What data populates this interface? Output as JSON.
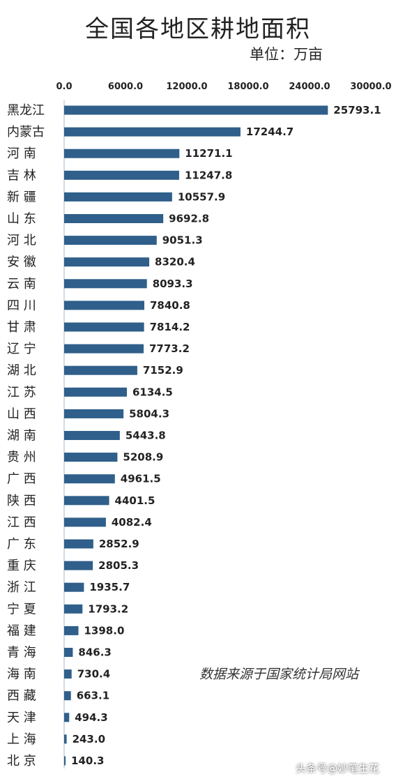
{
  "chart_data": {
    "type": "bar",
    "orientation": "horizontal",
    "title": "全国各地区耕地面积",
    "unit": "单位：万亩",
    "caption": "数据来源于国家统计局网站",
    "xlim": [
      0,
      30000
    ],
    "x_ticks": [
      "0.0",
      "6000.0",
      "12000.0",
      "18000.0",
      "24000.0",
      "30000.0"
    ],
    "x_tick_values": [
      0,
      6000,
      12000,
      18000,
      24000,
      30000
    ],
    "bar_color": "#2f5f8a",
    "categories": [
      "黑龙江",
      "内蒙古",
      "河 南",
      "吉 林",
      "新 疆",
      "山 东",
      "河 北",
      "安 徽",
      "云 南",
      "四 川",
      "甘 肃",
      "辽 宁",
      "湖 北",
      "江 苏",
      "山 西",
      "湖 南",
      "贵 州",
      "广 西",
      "陕 西",
      "江 西",
      "广 东",
      "重 庆",
      "浙 江",
      "宁 夏",
      "福 建",
      "青 海",
      "海 南",
      "西 藏",
      "天 津",
      "上 海",
      "北 京"
    ],
    "values": [
      25793.1,
      17244.7,
      11271.1,
      11247.8,
      10557.9,
      9692.8,
      9051.3,
      8320.4,
      8093.3,
      7840.8,
      7814.2,
      7773.2,
      7152.9,
      6134.5,
      5804.3,
      5443.8,
      5208.9,
      4961.5,
      4401.5,
      4082.4,
      2852.9,
      2805.3,
      1935.7,
      1793.2,
      1398.0,
      846.3,
      730.4,
      663.1,
      494.3,
      243.0,
      140.3
    ],
    "value_labels": [
      "25793.1",
      "17244.7",
      "11271.1",
      "11247.8",
      "10557.9",
      "9692.8",
      "9051.3",
      "8320.4",
      "8093.3",
      "7840.8",
      "7814.2",
      "7773.2",
      "7152.9",
      "6134.5",
      "5804.3",
      "5443.8",
      "5208.9",
      "4961.5",
      "4401.5",
      "4082.4",
      "2852.9",
      "2805.3",
      "1935.7",
      "1793.2",
      "1398.0",
      "846.3",
      "730.4",
      "663.1",
      "494.3",
      "243.0",
      "140.3"
    ]
  },
  "watermark": "头条号@妙笔生花"
}
